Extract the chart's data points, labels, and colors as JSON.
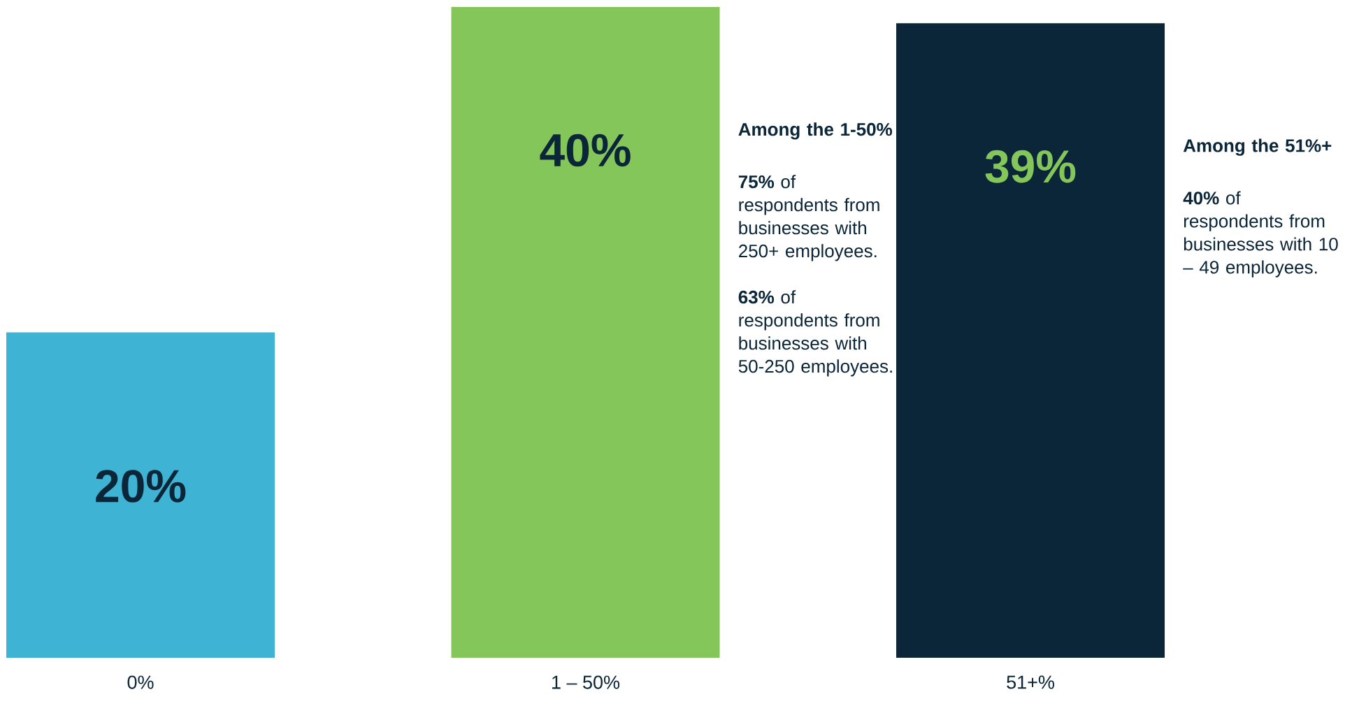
{
  "chart_data": {
    "type": "bar",
    "categories": [
      "0%",
      "1 – 50%",
      "51+%"
    ],
    "values": [
      20,
      40,
      39
    ],
    "colors": [
      "#3eb3d3",
      "#85c65a",
      "#0a2638"
    ],
    "value_labels": [
      "20%",
      "40%",
      "39%"
    ],
    "annotations": [
      "Among the 1-50%",
      "**75%** of respondents from businesses with 250+ employees.",
      "**63%** of respondents from businesses with 50-250 employees.",
      "Among the 51%+",
      "**40%** of respondents from businesses with 10 – 49 employees."
    ]
  }
}
